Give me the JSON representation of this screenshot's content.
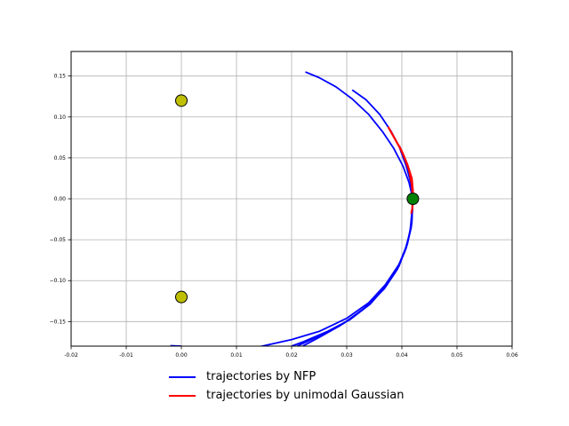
{
  "chart_data": {
    "type": "line",
    "title": "",
    "xlabel": "",
    "ylabel": "",
    "xlim": [
      -0.02,
      0.06
    ],
    "ylim": [
      -0.18,
      0.18
    ],
    "x_ticks": [
      -0.02,
      -0.01,
      0.0,
      0.01,
      0.02,
      0.03,
      0.04,
      0.05,
      0.06
    ],
    "x_tick_labels": [
      "-0.02",
      "-0.01",
      "0.00",
      "0.01",
      "0.02",
      "0.03",
      "0.04",
      "0.05",
      "0.06"
    ],
    "y_ticks": [
      0.15,
      0.1,
      0.05,
      0.0,
      -0.05,
      -0.1,
      -0.15
    ],
    "y_tick_labels": [
      "0.15",
      "0.10",
      "0.05",
      "0.00",
      "−0.05",
      "−0.10",
      "−0.15"
    ],
    "grid": true,
    "legend_position": "below",
    "series": [
      {
        "name": "trajectories by NFP",
        "color": "#0000ff",
        "lines": [
          [
            [
              0.0225,
              0.155
            ],
            [
              0.025,
              0.148
            ],
            [
              0.028,
              0.137
            ],
            [
              0.031,
              0.122
            ],
            [
              0.034,
              0.103
            ],
            [
              0.0365,
              0.082
            ],
            [
              0.0385,
              0.062
            ],
            [
              0.0402,
              0.04
            ],
            [
              0.0413,
              0.02
            ],
            [
              0.042,
              0.0
            ],
            [
              0.0418,
              -0.03
            ],
            [
              0.041,
              -0.055
            ],
            [
              0.0395,
              -0.08
            ],
            [
              0.037,
              -0.105
            ],
            [
              0.034,
              -0.127
            ],
            [
              0.03,
              -0.146
            ],
            [
              0.025,
              -0.162
            ],
            [
              0.02,
              -0.172
            ],
            [
              0.014,
              -0.181
            ]
          ],
          [
            [
              0.031,
              0.133
            ],
            [
              0.0335,
              0.121
            ],
            [
              0.036,
              0.103
            ],
            [
              0.038,
              0.083
            ],
            [
              0.0395,
              0.064
            ],
            [
              0.0408,
              0.04
            ],
            [
              0.0416,
              0.02
            ],
            [
              0.042,
              0.0
            ],
            [
              0.0418,
              -0.028
            ],
            [
              0.041,
              -0.055
            ],
            [
              0.0395,
              -0.082
            ],
            [
              0.0372,
              -0.106
            ],
            [
              0.0342,
              -0.129
            ],
            [
              0.0305,
              -0.148
            ],
            [
              0.0265,
              -0.162
            ],
            [
              0.022,
              -0.175
            ],
            [
              0.02,
              -0.18
            ]
          ],
          [
            [
              0.042,
              -0.005
            ],
            [
              0.0417,
              -0.035
            ],
            [
              0.0408,
              -0.06
            ],
            [
              0.0392,
              -0.086
            ],
            [
              0.0368,
              -0.11
            ],
            [
              0.0335,
              -0.132
            ],
            [
              0.0295,
              -0.152
            ],
            [
              0.0255,
              -0.166
            ],
            [
              0.021,
              -0.18
            ]
          ],
          [
            [
              0.0419,
              -0.01
            ],
            [
              0.0415,
              -0.04
            ],
            [
              0.0405,
              -0.065
            ],
            [
              0.0388,
              -0.09
            ],
            [
              0.0362,
              -0.114
            ],
            [
              0.0328,
              -0.136
            ],
            [
              0.0288,
              -0.155
            ],
            [
              0.0248,
              -0.17
            ],
            [
              0.022,
              -0.18
            ]
          ],
          [
            [
              0.0,
              -0.18
            ],
            [
              -0.002,
              -0.1795
            ]
          ]
        ]
      },
      {
        "name": "trajectories by unimodal Gaussian",
        "color": "#ff0000",
        "lines": [
          [
            [
              0.0375,
              0.088
            ],
            [
              0.039,
              0.07
            ],
            [
              0.04,
              0.058
            ],
            [
              0.041,
              0.042
            ],
            [
              0.0418,
              0.025
            ],
            [
              0.042,
              0.01
            ],
            [
              0.0419,
              -0.012
            ],
            [
              0.0417,
              -0.018
            ]
          ],
          [
            [
              0.0395,
              0.065
            ],
            [
              0.0405,
              0.05
            ],
            [
              0.0413,
              0.035
            ],
            [
              0.0418,
              0.018
            ],
            [
              0.042,
              0.0
            ]
          ]
        ]
      }
    ],
    "markers": [
      {
        "x": 0.0,
        "y": 0.12,
        "color": "#bfbf00"
      },
      {
        "x": 0.0,
        "y": -0.12,
        "color": "#bfbf00"
      },
      {
        "x": 0.042,
        "y": 0.0,
        "color": "#008000"
      }
    ]
  }
}
